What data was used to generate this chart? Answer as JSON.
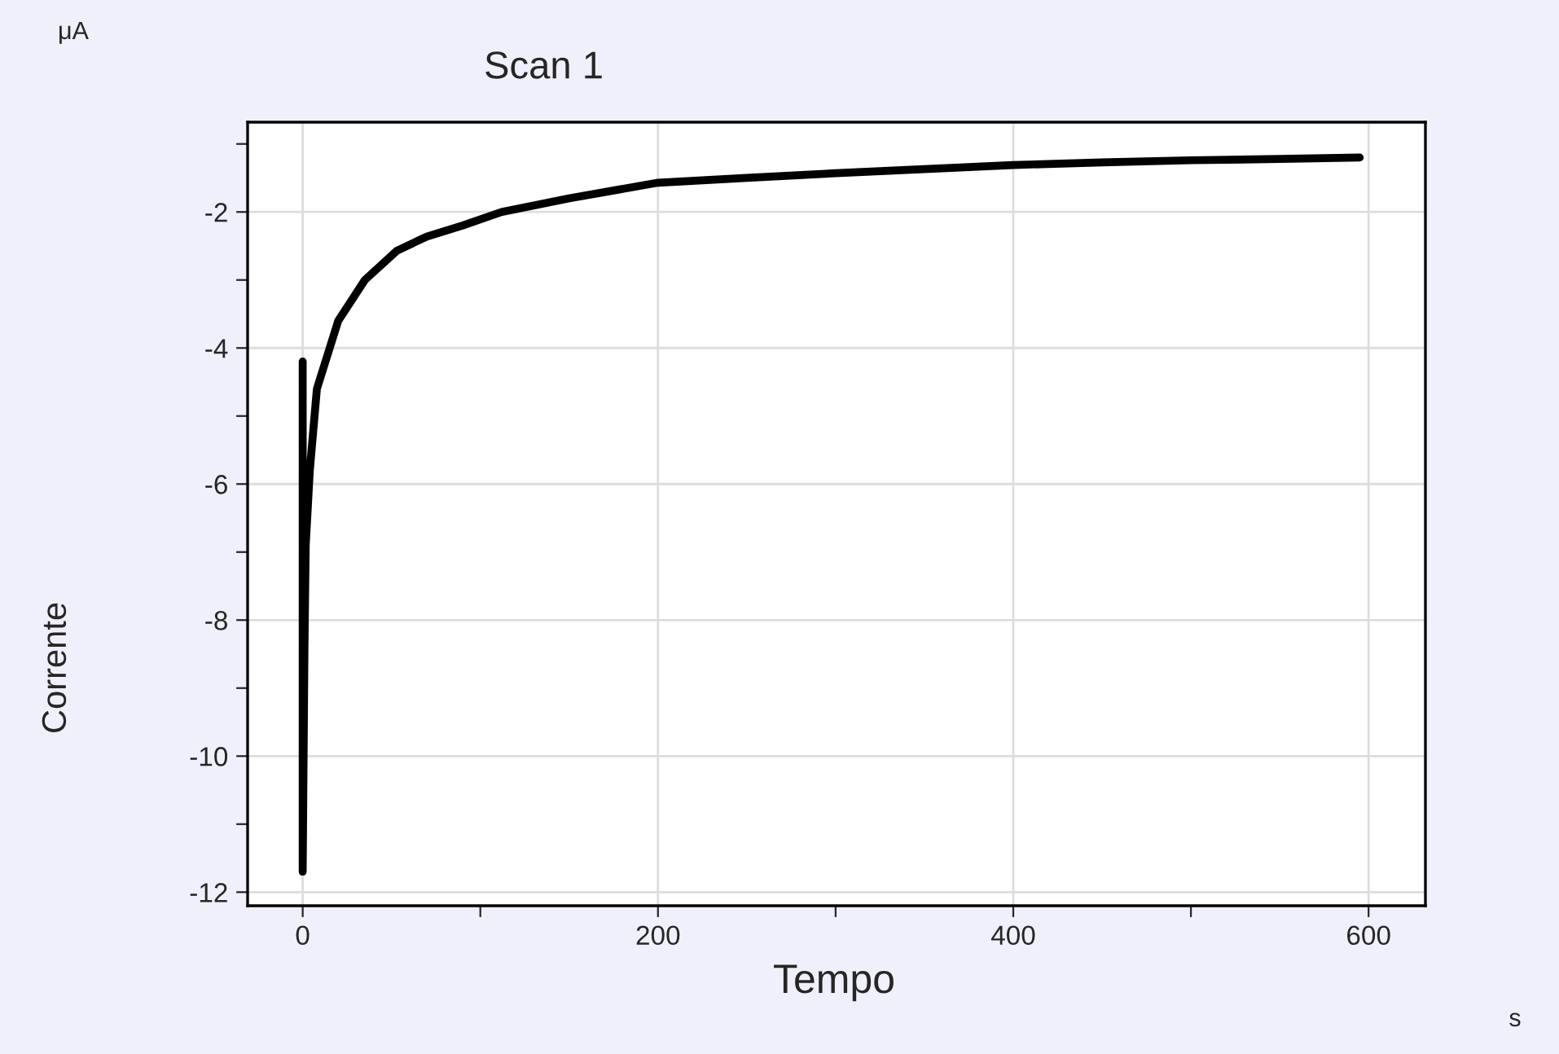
{
  "chart_data": {
    "type": "line",
    "title": "Scan 1",
    "xlabel": "Tempo",
    "ylabel": "Corrente",
    "annotations": [
      "μA",
      "s"
    ],
    "series": [
      {
        "color": "#000000",
        "x": [
          0,
          0,
          1,
          1.7,
          4,
          8,
          20,
          35,
          53,
          70,
          90,
          112,
          150,
          200,
          250,
          300,
          350,
          400,
          450,
          500,
          550,
          595
        ],
        "values": [
          -4.2,
          -11.7,
          -8.4,
          -6.9,
          -5.8,
          -4.6,
          -3.6,
          -3.0,
          -2.57,
          -2.36,
          -2.2,
          -2.0,
          -1.8,
          -1.57,
          -1.5,
          -1.43,
          -1.37,
          -1.31,
          -1.27,
          -1.24,
          -1.22,
          -1.2
        ]
      }
    ],
    "xlim": [
      -31,
      632
    ],
    "ylim": [
      -12.2,
      -0.68
    ],
    "xticks": [
      0,
      {
        "value": 100,
        "label": null
      },
      200,
      {
        "value": 300,
        "label": null
      },
      400,
      {
        "value": 500,
        "label": null
      },
      600
    ],
    "yticks": [
      {
        "value": -1,
        "label": null
      },
      -2,
      {
        "value": -3,
        "label": null
      },
      -4,
      {
        "value": -5,
        "label": null
      },
      -6,
      {
        "value": -7,
        "label": null
      },
      -8,
      {
        "value": -9,
        "label": null
      },
      -10,
      {
        "value": -11,
        "label": null
      },
      -12
    ],
    "grid": true,
    "legend": false,
    "marker": "none",
    "line_style": "solid"
  }
}
